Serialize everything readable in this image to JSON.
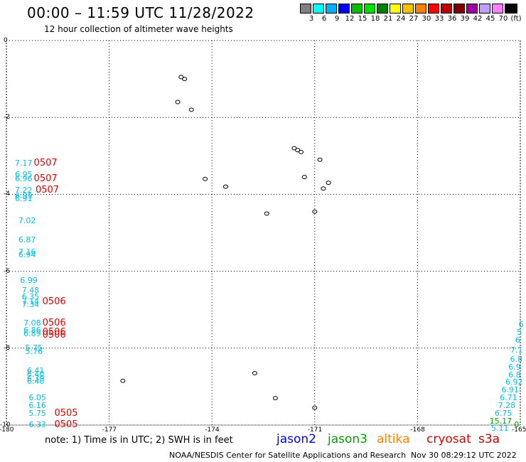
{
  "header": {
    "title": "00:00 – 11:59 UTC 11/28/2022",
    "subtitle": "12 hour collection of altimeter wave heights"
  },
  "legend": {
    "colors": [
      "#808080",
      "#00ffff",
      "#00b0ff",
      "#0000ff",
      "#00c000",
      "#00e000",
      "#008000",
      "#ffff00",
      "#ffc000",
      "#ff8000",
      "#ff0000",
      "#c00000",
      "#800000",
      "#a000a0",
      "#c0a0ff",
      "#ff80ff",
      "#000000"
    ],
    "ticks": [
      "3",
      "6",
      "9",
      "12",
      "15",
      "18",
      "21",
      "24",
      "27",
      "30",
      "33",
      "36",
      "39",
      "42",
      "45",
      "70",
      "(ft)"
    ]
  },
  "axes": {
    "x_ticks": [
      "-180",
      "-177",
      "-174",
      "-171",
      "-168",
      "-165"
    ],
    "x_tick_values": [
      -180,
      -177,
      -174,
      -171,
      -168,
      -165
    ],
    "y_ticks": [
      "0",
      "-2",
      "-4",
      "-6",
      "-8",
      "-10"
    ],
    "y_tick_values": [
      0,
      -2,
      -4,
      -6,
      -8,
      -10
    ],
    "xlim": [
      -180,
      -165
    ],
    "ylim": [
      -10,
      0
    ],
    "grid": "dotted"
  },
  "observations": [
    {
      "lon": -179.75,
      "lat": -3.2,
      "value": "7.17",
      "color": "#00c0e0"
    },
    {
      "lon": -179.75,
      "lat": -3.5,
      "value": "6.95",
      "color": "#00c0e0"
    },
    {
      "lon": -179.75,
      "lat": -3.6,
      "value": "6.96",
      "color": "#00c0e0"
    },
    {
      "lon": -179.75,
      "lat": -3.9,
      "value": "7.22",
      "color": "#00c0e0"
    },
    {
      "lon": -179.75,
      "lat": -4.05,
      "value": "6.99",
      "color": "#00c0e0"
    },
    {
      "lon": -179.75,
      "lat": -4.13,
      "value": "6.91",
      "color": "#00c0e0"
    },
    {
      "lon": -179.65,
      "lat": -4.7,
      "value": "7.02",
      "color": "#00c0e0"
    },
    {
      "lon": -179.65,
      "lat": -5.2,
      "value": "6.87",
      "color": "#00c0e0"
    },
    {
      "lon": -179.65,
      "lat": -5.5,
      "value": "7.16",
      "color": "#00c0e0"
    },
    {
      "lon": -179.65,
      "lat": -5.58,
      "value": "6.94",
      "color": "#00c0e0"
    },
    {
      "lon": -179.6,
      "lat": -6.25,
      "value": "6.99",
      "color": "#00c0e0"
    },
    {
      "lon": -179.55,
      "lat": -6.5,
      "value": "7.48",
      "color": "#00c0e0"
    },
    {
      "lon": -179.55,
      "lat": -6.68,
      "value": "6.35",
      "color": "#00c0e0"
    },
    {
      "lon": -179.55,
      "lat": -6.8,
      "value": "7.14",
      "color": "#00c0e0"
    },
    {
      "lon": -179.55,
      "lat": -6.88,
      "value": "7.34",
      "color": "#00c0e0"
    },
    {
      "lon": -179.5,
      "lat": -7.35,
      "value": "7.08",
      "color": "#00c0e0"
    },
    {
      "lon": -179.5,
      "lat": -7.55,
      "value": "6.86",
      "color": "#00c0e0"
    },
    {
      "lon": -179.5,
      "lat": -7.63,
      "value": "6.89",
      "color": "#00c0e0"
    },
    {
      "lon": -179.45,
      "lat": -8.0,
      "value": "5.75",
      "color": "#00c0e0"
    },
    {
      "lon": -179.45,
      "lat": -8.1,
      "value": "5.76",
      "color": "#00c0e0"
    },
    {
      "lon": -179.4,
      "lat": -8.6,
      "value": "6.41",
      "color": "#00c0e0"
    },
    {
      "lon": -179.4,
      "lat": -8.68,
      "value": "6.40",
      "color": "#00c0e0"
    },
    {
      "lon": -179.4,
      "lat": -8.8,
      "value": "6.39",
      "color": "#00c0e0"
    },
    {
      "lon": -179.4,
      "lat": -8.88,
      "value": "6.40",
      "color": "#00c0e0"
    },
    {
      "lon": -179.35,
      "lat": -9.3,
      "value": "6.05",
      "color": "#00c0e0"
    },
    {
      "lon": -179.35,
      "lat": -9.5,
      "value": "6.16",
      "color": "#00c0e0"
    },
    {
      "lon": -179.35,
      "lat": -9.7,
      "value": "5.75",
      "color": "#00c0e0"
    },
    {
      "lon": -179.35,
      "lat": -10.0,
      "value": "6.33",
      "color": "#00c0e0"
    },
    {
      "lon": -165.05,
      "lat": -7.4,
      "value": "6",
      "color": "#00c0e0"
    },
    {
      "lon": -165.1,
      "lat": -7.6,
      "value": "5",
      "color": "#00c0e0"
    },
    {
      "lon": -165.15,
      "lat": -7.8,
      "value": "6",
      "color": "#00c0e0"
    },
    {
      "lon": -165.2,
      "lat": -8.05,
      "value": "7.1",
      "color": "#00c0e0"
    },
    {
      "lon": -165.3,
      "lat": -8.3,
      "value": "6.8",
      "color": "#00c0e0"
    },
    {
      "lon": -165.35,
      "lat": -8.5,
      "value": "6.9",
      "color": "#00c0e0"
    },
    {
      "lon": -165.35,
      "lat": -8.7,
      "value": "6.8",
      "color": "#00c0e0"
    },
    {
      "lon": -165.4,
      "lat": -8.9,
      "value": "6.92",
      "color": "#00c0e0"
    },
    {
      "lon": -165.55,
      "lat": -9.1,
      "value": "6.91",
      "color": "#00c0e0"
    },
    {
      "lon": -165.6,
      "lat": -9.3,
      "value": "6.71",
      "color": "#00c0e0"
    },
    {
      "lon": -165.65,
      "lat": -9.5,
      "value": "7.28",
      "color": "#00c0e0"
    },
    {
      "lon": -165.75,
      "lat": -9.7,
      "value": "6.75",
      "color": "#00c0e0"
    },
    {
      "lon": -165.9,
      "lat": -9.9,
      "value": "15.17",
      "color": "#00a000"
    },
    {
      "lon": -165.85,
      "lat": -10.1,
      "value": "5.11",
      "color": "#00c0e0"
    },
    {
      "lon": -165.18,
      "lat": -10.0,
      "value": "0",
      "color": "#00a000"
    }
  ],
  "pass_labels": [
    {
      "lon": -179.2,
      "lat": -3.2,
      "text": "0507"
    },
    {
      "lon": -179.2,
      "lat": -3.6,
      "text": "0507"
    },
    {
      "lon": -179.15,
      "lat": -3.9,
      "text": "0507"
    },
    {
      "lon": -178.95,
      "lat": -6.8,
      "text": "0506"
    },
    {
      "lon": -178.95,
      "lat": -7.35,
      "text": "0506"
    },
    {
      "lon": -178.95,
      "lat": -7.6,
      "text": "0506"
    },
    {
      "lon": -178.95,
      "lat": -7.68,
      "text": "0506"
    },
    {
      "lon": -178.6,
      "lat": -9.7,
      "text": "0505"
    },
    {
      "lon": -178.6,
      "lat": -10.0,
      "text": "0505"
    }
  ],
  "islands": [
    {
      "lon": -174.9,
      "lat": -0.95
    },
    {
      "lon": -174.8,
      "lat": -1.0
    },
    {
      "lon": -175.0,
      "lat": -1.6
    },
    {
      "lon": -174.6,
      "lat": -1.8
    },
    {
      "lon": -174.2,
      "lat": -3.6
    },
    {
      "lon": -173.6,
      "lat": -3.8
    },
    {
      "lon": -171.6,
      "lat": -2.8
    },
    {
      "lon": -171.5,
      "lat": -2.85
    },
    {
      "lon": -171.4,
      "lat": -2.9
    },
    {
      "lon": -170.85,
      "lat": -3.1
    },
    {
      "lon": -171.3,
      "lat": -3.55
    },
    {
      "lon": -170.6,
      "lat": -3.7
    },
    {
      "lon": -170.75,
      "lat": -3.85
    },
    {
      "lon": -172.4,
      "lat": -4.5
    },
    {
      "lon": -171.0,
      "lat": -4.45
    },
    {
      "lon": -172.75,
      "lat": -8.65
    },
    {
      "lon": -176.6,
      "lat": -8.85
    },
    {
      "lon": -172.15,
      "lat": -9.3
    },
    {
      "lon": -171.0,
      "lat": -9.55
    }
  ],
  "footer": {
    "note": "note: 1) Time is in UTC; 2) SWH is in feet",
    "satellites": [
      {
        "name": "jason2",
        "color": "#0000ff"
      },
      {
        "name": "jason3",
        "color": "#00a000"
      },
      {
        "name": "altika",
        "color": "#ff8000"
      },
      {
        "name": "cryosat",
        "color": "#e00000"
      },
      {
        "name": "s3a",
        "color": "#c00000"
      }
    ],
    "credit": "NOAA/NESDIS Center for Satellite Applications and Research",
    "timestamp": "Nov 30 08:29:12 UTC 2022"
  }
}
